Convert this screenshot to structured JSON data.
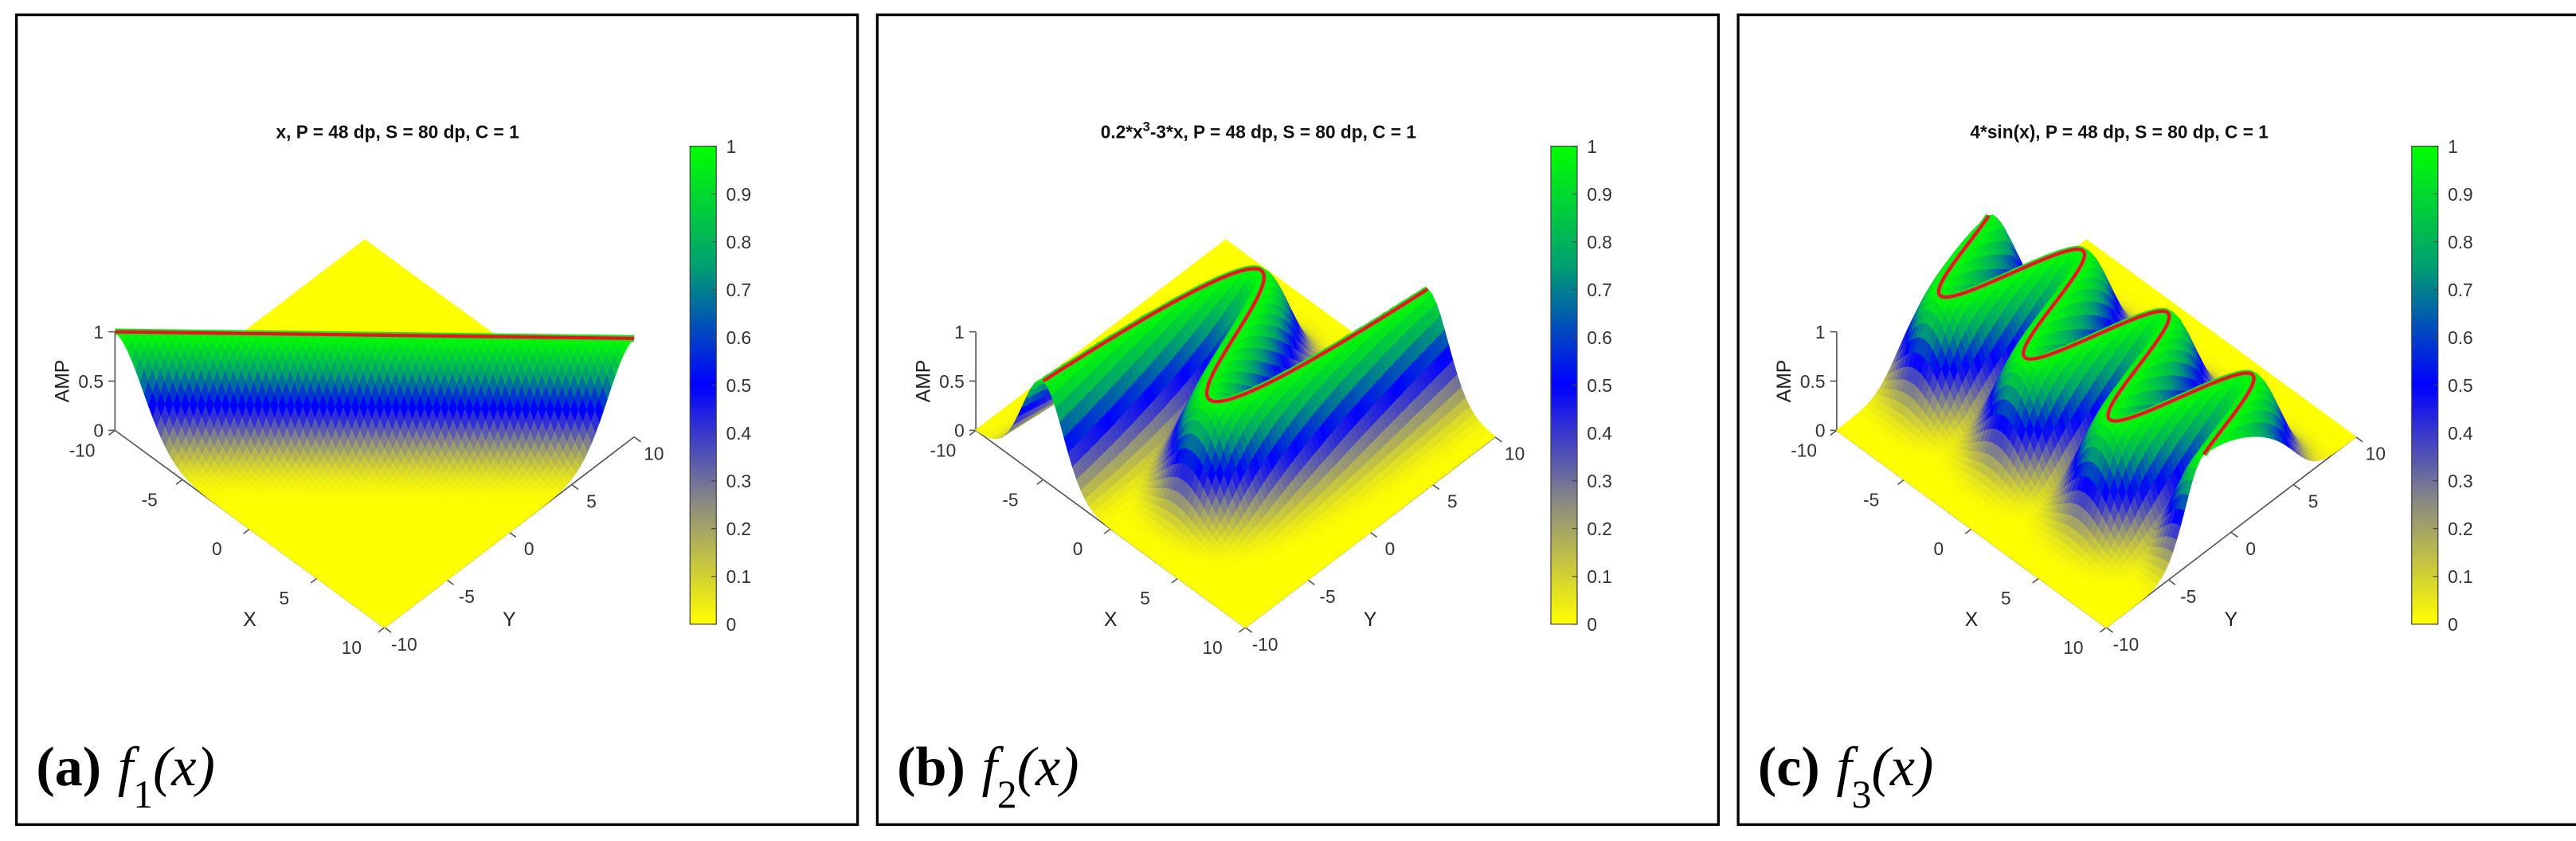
{
  "chart_data": [
    {
      "type": "surface",
      "title_function": [
        {
          "text": "x"
        }
      ],
      "title_parameters": ", P = 48 dp, S = 80 dp, C = 1",
      "caption_label": "(a)",
      "caption_function": "f",
      "caption_subscript": "1",
      "caption_argument": "(x)",
      "xlabel": "X",
      "ylabel": "Y",
      "zlabel": "AMP",
      "xlim": [
        -10,
        10
      ],
      "ylim": [
        -10,
        10
      ],
      "zlim": [
        0,
        1
      ],
      "xticks": [
        -10,
        -5,
        0,
        5,
        10
      ],
      "yticks": [
        -10,
        -5,
        0,
        5,
        10
      ],
      "zticks": [
        0,
        0.5,
        1
      ],
      "clim": [
        0,
        1
      ],
      "cticks": [
        0,
        0.1,
        0.2,
        0.3,
        0.4,
        0.5,
        0.6,
        0.7,
        0.8,
        0.9,
        1
      ],
      "colormap": [
        "#ffff00",
        "#8c8c80",
        "#0000ff",
        "#00a070",
        "#00ff00"
      ],
      "ridge_color": "#e8141e",
      "ridge_edge_color": "#22dd22"
    },
    {
      "type": "surface",
      "title_function": [
        {
          "text": "0.2*x"
        },
        {
          "text": "3",
          "sup": true
        },
        {
          "text": "-3*x"
        }
      ],
      "title_parameters": ", P = 48 dp, S = 80 dp, C = 1",
      "caption_label": "(b)",
      "caption_function": "f",
      "caption_subscript": "2",
      "caption_argument": "(x)",
      "xlabel": "X",
      "ylabel": "Y",
      "zlabel": "AMP",
      "xlim": [
        -10,
        10
      ],
      "ylim": [
        -10,
        10
      ],
      "zlim": [
        0,
        1
      ],
      "xticks": [
        -10,
        -5,
        0,
        5,
        10
      ],
      "yticks": [
        -10,
        -5,
        0,
        5,
        10
      ],
      "zticks": [
        0,
        0.5,
        1
      ],
      "clim": [
        0,
        1
      ],
      "cticks": [
        0,
        0.1,
        0.2,
        0.3,
        0.4,
        0.5,
        0.6,
        0.7,
        0.8,
        0.9,
        1
      ],
      "colormap": [
        "#ffff00",
        "#8c8c80",
        "#0000ff",
        "#00a070",
        "#00ff00"
      ],
      "ridge_color": "#e8141e",
      "ridge_edge_color": "#22dd22"
    },
    {
      "type": "surface",
      "title_function": [
        {
          "text": "4*sin(x)"
        }
      ],
      "title_parameters": ", P = 48 dp, S = 80 dp, C = 1",
      "caption_label": "(c)",
      "caption_function": "f",
      "caption_subscript": "3",
      "caption_argument": "(x)",
      "xlabel": "X",
      "ylabel": "Y",
      "zlabel": "AMP",
      "xlim": [
        -10,
        10
      ],
      "ylim": [
        -10,
        10
      ],
      "zlim": [
        0,
        1
      ],
      "xticks": [
        -10,
        -5,
        0,
        5,
        10
      ],
      "yticks": [
        -10,
        -5,
        0,
        5,
        10
      ],
      "zticks": [
        0,
        0.5,
        1
      ],
      "clim": [
        0,
        1
      ],
      "cticks": [
        0,
        0.1,
        0.2,
        0.3,
        0.4,
        0.5,
        0.6,
        0.7,
        0.8,
        0.9,
        1
      ],
      "colormap": [
        "#ffff00",
        "#8c8c80",
        "#0000ff",
        "#00a070",
        "#00ff00"
      ],
      "ridge_color": "#e8141e",
      "ridge_edge_color": "#22dd22"
    }
  ]
}
